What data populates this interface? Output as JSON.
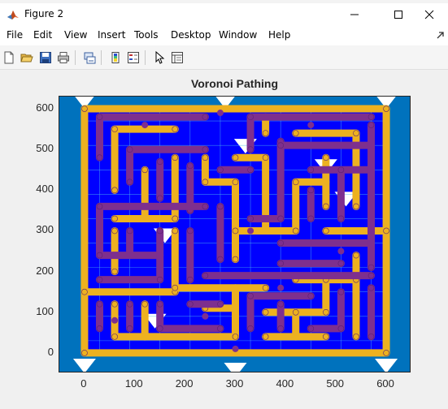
{
  "window": {
    "title": "Figure 2",
    "controls": {
      "minimize": "minimize",
      "maximize": "maximize",
      "close": "close"
    }
  },
  "menu": [
    "File",
    "Edit",
    "View",
    "Insert",
    "Tools",
    "Desktop",
    "Window",
    "Help"
  ],
  "toolbar": {
    "icons": [
      "new-figure-icon",
      "open-file-icon",
      "save-icon",
      "print-icon",
      "link-plot-icon",
      "insert-colorbar-icon",
      "insert-legend-icon",
      "edit-plot-icon",
      "property-inspector-icon"
    ]
  },
  "colors": {
    "background_blue": "#0072bd",
    "cell_blue": "#0000ff",
    "path_orange": "#edb120",
    "path_purple": "#7e2f8e",
    "edge_teal": "#4dbeee",
    "axis_text": "#262626"
  },
  "chart_data": {
    "type": "scatter",
    "title": "Voronoi Pathing",
    "xlabel": "",
    "ylabel": "",
    "xlim": [
      -50,
      650
    ],
    "ylim": [
      -50,
      630
    ],
    "xticks": [
      0,
      100,
      200,
      300,
      400,
      500,
      600
    ],
    "yticks": [
      0,
      100,
      200,
      300,
      400,
      500,
      600
    ],
    "xtick_labels": [
      "0",
      "100",
      "200",
      "300",
      "400",
      "500",
      "600"
    ],
    "ytick_labels": [
      "0",
      "100",
      "200",
      "300",
      "400",
      "500",
      "600"
    ],
    "maze_bounds": {
      "x": [
        0,
        600
      ],
      "y": [
        0,
        600
      ]
    },
    "series": [
      {
        "color": "#edb120",
        "segments": [
          [
            [
              0,
              600
            ],
            [
              600,
              600
            ]
          ],
          [
            [
              0,
              0
            ],
            [
              600,
              0
            ]
          ],
          [
            [
              0,
              0
            ],
            [
              0,
              600
            ]
          ],
          [
            [
              600,
              0
            ],
            [
              600,
              600
            ]
          ],
          [
            [
              60,
              550
            ],
            [
              180,
              550
            ]
          ],
          [
            [
              60,
              550
            ],
            [
              60,
              400
            ]
          ],
          [
            [
              120,
              450
            ],
            [
              120,
              330
            ]
          ],
          [
            [
              180,
              480
            ],
            [
              180,
              330
            ]
          ],
          [
            [
              60,
              330
            ],
            [
              180,
              330
            ]
          ],
          [
            [
              60,
              300
            ],
            [
              60,
              200
            ]
          ],
          [
            [
              180,
              300
            ],
            [
              180,
              150
            ]
          ],
          [
            [
              0,
              150
            ],
            [
              180,
              150
            ]
          ],
          [
            [
              60,
              120
            ],
            [
              60,
              40
            ]
          ],
          [
            [
              120,
              120
            ],
            [
              120,
              40
            ]
          ],
          [
            [
              60,
              40
            ],
            [
              300,
              40
            ]
          ],
          [
            [
              240,
              110
            ],
            [
              300,
              110
            ]
          ],
          [
            [
              300,
              40
            ],
            [
              300,
              160
            ]
          ],
          [
            [
              180,
              160
            ],
            [
              360,
              160
            ]
          ],
          [
            [
              300,
              230
            ],
            [
              300,
              420
            ]
          ],
          [
            [
              240,
              420
            ],
            [
              300,
              420
            ]
          ],
          [
            [
              240,
              420
            ],
            [
              240,
              480
            ]
          ],
          [
            [
              300,
              480
            ],
            [
              360,
              480
            ]
          ],
          [
            [
              360,
              300
            ],
            [
              360,
              480
            ]
          ],
          [
            [
              300,
              300
            ],
            [
              420,
              300
            ]
          ],
          [
            [
              420,
              300
            ],
            [
              420,
              420
            ]
          ],
          [
            [
              420,
              420
            ],
            [
              480,
              420
            ]
          ],
          [
            [
              480,
              360
            ],
            [
              480,
              480
            ]
          ],
          [
            [
              420,
              540
            ],
            [
              540,
              540
            ]
          ],
          [
            [
              360,
              540
            ],
            [
              360,
              580
            ]
          ],
          [
            [
              540,
              360
            ],
            [
              540,
              540
            ]
          ],
          [
            [
              480,
              300
            ],
            [
              600,
              300
            ]
          ],
          [
            [
              540,
              40
            ],
            [
              540,
              240
            ]
          ],
          [
            [
              420,
              180
            ],
            [
              540,
              180
            ]
          ],
          [
            [
              360,
              100
            ],
            [
              480,
              100
            ]
          ],
          [
            [
              420,
              40
            ],
            [
              420,
              100
            ]
          ],
          [
            [
              360,
              40
            ],
            [
              480,
              40
            ]
          ],
          [
            [
              480,
              100
            ],
            [
              480,
              180
            ]
          ]
        ]
      },
      {
        "color": "#7e2f8e",
        "segments": [
          [
            [
              30,
              580
            ],
            [
              240,
              580
            ]
          ],
          [
            [
              30,
              480
            ],
            [
              30,
              580
            ]
          ],
          [
            [
              90,
              500
            ],
            [
              240,
              500
            ]
          ],
          [
            [
              90,
              420
            ],
            [
              90,
              500
            ]
          ],
          [
            [
              150,
              380
            ],
            [
              150,
              470
            ]
          ],
          [
            [
              210,
              350
            ],
            [
              210,
              460
            ]
          ],
          [
            [
              30,
              360
            ],
            [
              240,
              360
            ]
          ],
          [
            [
              30,
              240
            ],
            [
              30,
              360
            ]
          ],
          [
            [
              90,
              240
            ],
            [
              90,
              300
            ]
          ],
          [
            [
              30,
              240
            ],
            [
              150,
              240
            ]
          ],
          [
            [
              150,
              180
            ],
            [
              150,
              300
            ]
          ],
          [
            [
              210,
              180
            ],
            [
              210,
              300
            ]
          ],
          [
            [
              30,
              180
            ],
            [
              150,
              180
            ]
          ],
          [
            [
              30,
              60
            ],
            [
              30,
              120
            ]
          ],
          [
            [
              90,
              60
            ],
            [
              90,
              120
            ]
          ],
          [
            [
              150,
              60
            ],
            [
              270,
              60
            ]
          ],
          [
            [
              150,
              60
            ],
            [
              150,
              120
            ]
          ],
          [
            [
              210,
              120
            ],
            [
              270,
              120
            ]
          ],
          [
            [
              240,
              190
            ],
            [
              570,
              190
            ]
          ],
          [
            [
              270,
              230
            ],
            [
              270,
              360
            ]
          ],
          [
            [
              270,
              450
            ],
            [
              330,
              450
            ]
          ],
          [
            [
              330,
              500
            ],
            [
              330,
              580
            ]
          ],
          [
            [
              330,
              580
            ],
            [
              570,
              580
            ]
          ],
          [
            [
              390,
              330
            ],
            [
              390,
              520
            ]
          ],
          [
            [
              330,
              330
            ],
            [
              390,
              330
            ]
          ],
          [
            [
              450,
              330
            ],
            [
              450,
              400
            ]
          ],
          [
            [
              450,
              450
            ],
            [
              570,
              450
            ]
          ],
          [
            [
              390,
              510
            ],
            [
              570,
              510
            ]
          ],
          [
            [
              510,
              330
            ],
            [
              510,
              450
            ]
          ],
          [
            [
              390,
              270
            ],
            [
              570,
              270
            ]
          ],
          [
            [
              570,
              210
            ],
            [
              570,
              560
            ]
          ],
          [
            [
              330,
              60
            ],
            [
              330,
              140
            ]
          ],
          [
            [
              330,
              140
            ],
            [
              450,
              140
            ]
          ],
          [
            [
              390,
              60
            ],
            [
              390,
              120
            ]
          ],
          [
            [
              450,
              60
            ],
            [
              510,
              60
            ]
          ],
          [
            [
              510,
              60
            ],
            [
              510,
              150
            ]
          ],
          [
            [
              570,
              40
            ],
            [
              570,
              160
            ]
          ],
          [
            [
              390,
              220
            ],
            [
              510,
              220
            ]
          ]
        ]
      }
    ],
    "points": {
      "purple": [
        [
          270,
          590
        ],
        [
          300,
          10
        ],
        [
          330,
          300
        ],
        [
          210,
          390
        ],
        [
          120,
          560
        ],
        [
          450,
          560
        ],
        [
          390,
          160
        ],
        [
          240,
          90
        ],
        [
          510,
          250
        ],
        [
          60,
          80
        ]
      ],
      "white_gaps": [
        [
          0,
          620
        ],
        [
          600,
          620
        ],
        [
          0,
          -30
        ],
        [
          600,
          -30
        ],
        [
          300,
          -40
        ],
        [
          280,
          620
        ],
        [
          160,
          290
        ],
        [
          140,
          80
        ],
        [
          480,
          460
        ],
        [
          320,
          510
        ],
        [
          520,
          380
        ]
      ]
    }
  }
}
